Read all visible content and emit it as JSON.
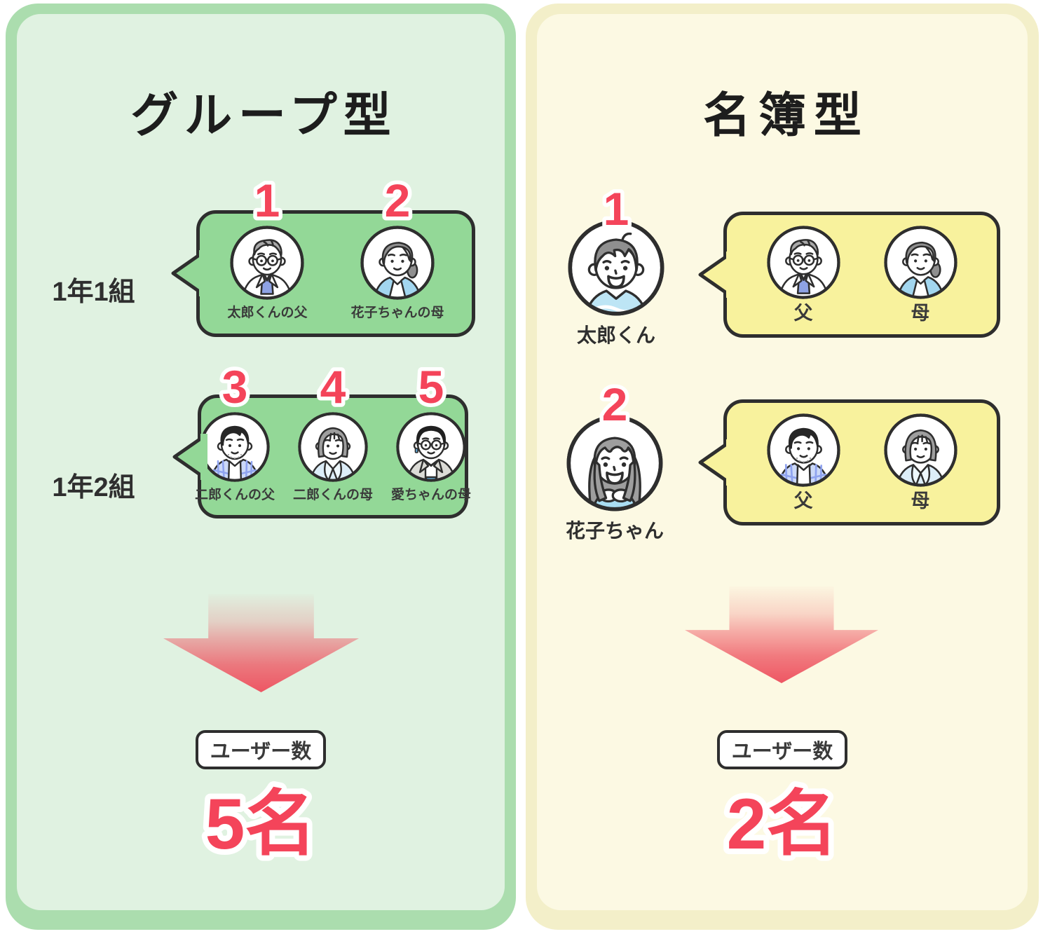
{
  "panels": {
    "group": {
      "title": "グループ型",
      "rows": [
        {
          "label": "1年1組",
          "members": [
            {
              "number": "1",
              "avatar": "taro-father",
              "name": "太郎くんの父"
            },
            {
              "number": "2",
              "avatar": "hanako-mother",
              "name": "花子ちゃんの母"
            }
          ]
        },
        {
          "label": "1年2組",
          "members": [
            {
              "number": "3",
              "avatar": "jiro-father",
              "name": "二郎くんの父"
            },
            {
              "number": "4",
              "avatar": "jiro-mother",
              "name": "二郎くんの母"
            },
            {
              "number": "5",
              "avatar": "ai-mother",
              "name": "愛ちゃんの母"
            }
          ]
        }
      ],
      "badge": "ユーザー数",
      "count": "5名"
    },
    "roster": {
      "title": "名簿型",
      "rows": [
        {
          "number": "1",
          "person": {
            "avatar": "taro-boy",
            "name": "太郎くん"
          },
          "members": [
            {
              "avatar": "taro-father",
              "name": "父"
            },
            {
              "avatar": "hanako-mother",
              "name": "母"
            }
          ]
        },
        {
          "number": "2",
          "person": {
            "avatar": "hanako-girl",
            "name": "花子ちゃん"
          },
          "members": [
            {
              "avatar": "jiro-father",
              "name": "父"
            },
            {
              "avatar": "jiro-mother",
              "name": "母"
            }
          ]
        }
      ],
      "badge": "ユーザー数",
      "count": "2名"
    }
  },
  "colors": {
    "accent_red": "#f4445a",
    "dark_outline": "#2e2e2e",
    "group_frame": "#abddae",
    "group_bg": "#e0f2e1",
    "group_bubble": "#93d897",
    "roster_frame": "#f3efc9",
    "roster_bg": "#fcf9e3",
    "roster_bubble": "#f8f29d"
  }
}
